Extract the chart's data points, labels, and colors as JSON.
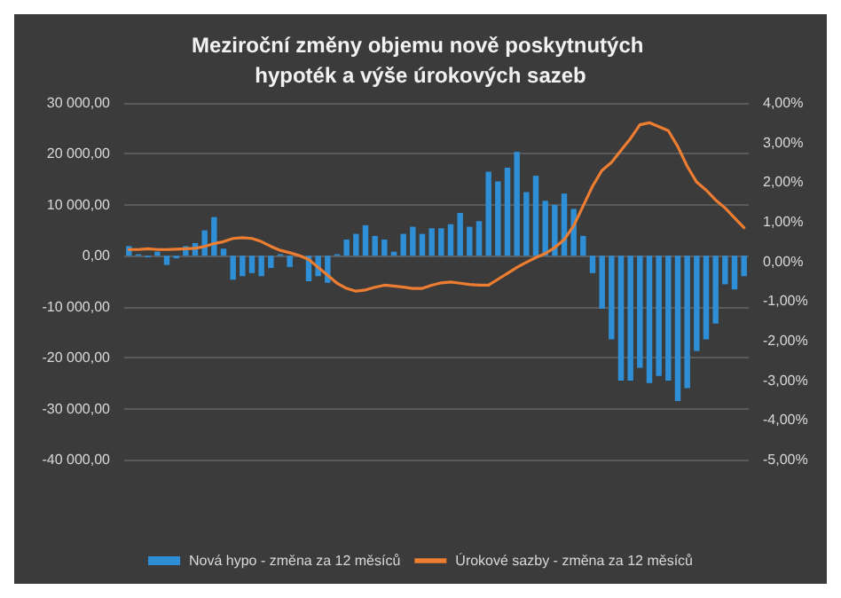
{
  "chart_data": {
    "type": "bar",
    "title": "Meziroční změny objemu nově poskytnutých hypoték a výše úrokových sazeb",
    "categories": [
      null,
      null,
      null,
      null,
      null,
      null,
      null,
      null,
      null,
      null,
      null,
      null,
      null,
      null,
      null,
      null,
      null,
      null,
      null,
      null,
      null,
      null,
      null,
      null,
      null,
      null,
      null,
      null,
      null,
      null,
      null,
      null,
      null,
      null,
      null,
      null,
      null,
      null,
      null,
      null,
      null,
      null,
      null,
      null,
      null,
      null,
      null,
      null,
      null,
      null,
      null,
      null,
      null,
      null,
      null,
      null,
      null,
      null,
      null,
      null,
      null,
      null,
      null,
      null,
      null,
      null
    ],
    "series": [
      {
        "name": "Nová hypo - změna za 12 měsíců",
        "color": "#2e8fd6",
        "values": [
          1900,
          300,
          -300,
          800,
          -1800,
          -500,
          1900,
          2500,
          5000,
          7600,
          1400,
          -4700,
          -4000,
          -3400,
          -4000,
          -2400,
          300,
          -2200,
          null,
          -5000,
          -4000,
          -5300,
          300,
          3200,
          4300,
          6000,
          3900,
          3200,
          800,
          4300,
          5700,
          4300,
          5400,
          5400,
          6200,
          8400,
          5700,
          6800,
          16500,
          14600,
          17300,
          20400,
          12500,
          15700,
          10800,
          10000,
          12200,
          9200,
          3900,
          -3400,
          -10400,
          -16400,
          -24500,
          -24500,
          -22000,
          -25000,
          -23600,
          -24500,
          -28500,
          -26000,
          -18700,
          -16400,
          -13300,
          -5600,
          -6600,
          -4000
        ]
      },
      {
        "name": "Úrokové sazby - změna za 12 měsíců",
        "type": "line",
        "axis": "y2",
        "color": "#ed7d31",
        "values": [
          0.3,
          0.3,
          0.32,
          0.3,
          0.3,
          0.31,
          0.32,
          0.33,
          0.38,
          0.45,
          0.5,
          0.58,
          0.6,
          0.58,
          0.5,
          0.38,
          0.28,
          0.22,
          0.15,
          0.05,
          -0.15,
          -0.35,
          -0.55,
          -0.68,
          -0.75,
          -0.72,
          -0.65,
          -0.6,
          -0.62,
          -0.65,
          -0.68,
          -0.68,
          -0.6,
          -0.54,
          -0.52,
          -0.55,
          -0.58,
          -0.6,
          -0.6,
          -0.45,
          -0.3,
          -0.15,
          -0.02,
          0.1,
          0.2,
          0.35,
          0.55,
          0.9,
          1.4,
          1.9,
          2.3,
          2.5,
          2.8,
          3.1,
          3.45,
          3.5,
          3.4,
          3.3,
          2.9,
          2.4,
          2.0,
          1.8,
          1.55,
          1.35,
          1.1,
          0.85
        ]
      }
    ],
    "ylim": [
      -40000,
      30000
    ],
    "yticks": [
      {
        "value": -40000,
        "label": "-40 000,00"
      },
      {
        "value": -30000,
        "label": "-30 000,00"
      },
      {
        "value": -20000,
        "label": "-20 000,00"
      },
      {
        "value": -10000,
        "label": "-10 000,00"
      },
      {
        "value": 0,
        "label": "0,00"
      },
      {
        "value": 10000,
        "label": "10 000,00"
      },
      {
        "value": 20000,
        "label": "20 000,00"
      },
      {
        "value": 30000,
        "label": "30 000,00"
      }
    ],
    "y2lim": [
      -5,
      4
    ],
    "y2ticks": [
      {
        "value": -5,
        "label": "-5,00%"
      },
      {
        "value": -4,
        "label": "-4,00%"
      },
      {
        "value": -3,
        "label": "-3,00%"
      },
      {
        "value": -2,
        "label": "-2,00%"
      },
      {
        "value": -1,
        "label": "-1,00%"
      },
      {
        "value": 0,
        "label": "0,00%"
      },
      {
        "value": 1,
        "label": "1,00%"
      },
      {
        "value": 2,
        "label": "2,00%"
      },
      {
        "value": 3,
        "label": "3,00%"
      },
      {
        "value": 4,
        "label": "4,00%"
      }
    ],
    "grid": "y",
    "legend": "bottom",
    "marker": "none",
    "line_style": "solid"
  }
}
